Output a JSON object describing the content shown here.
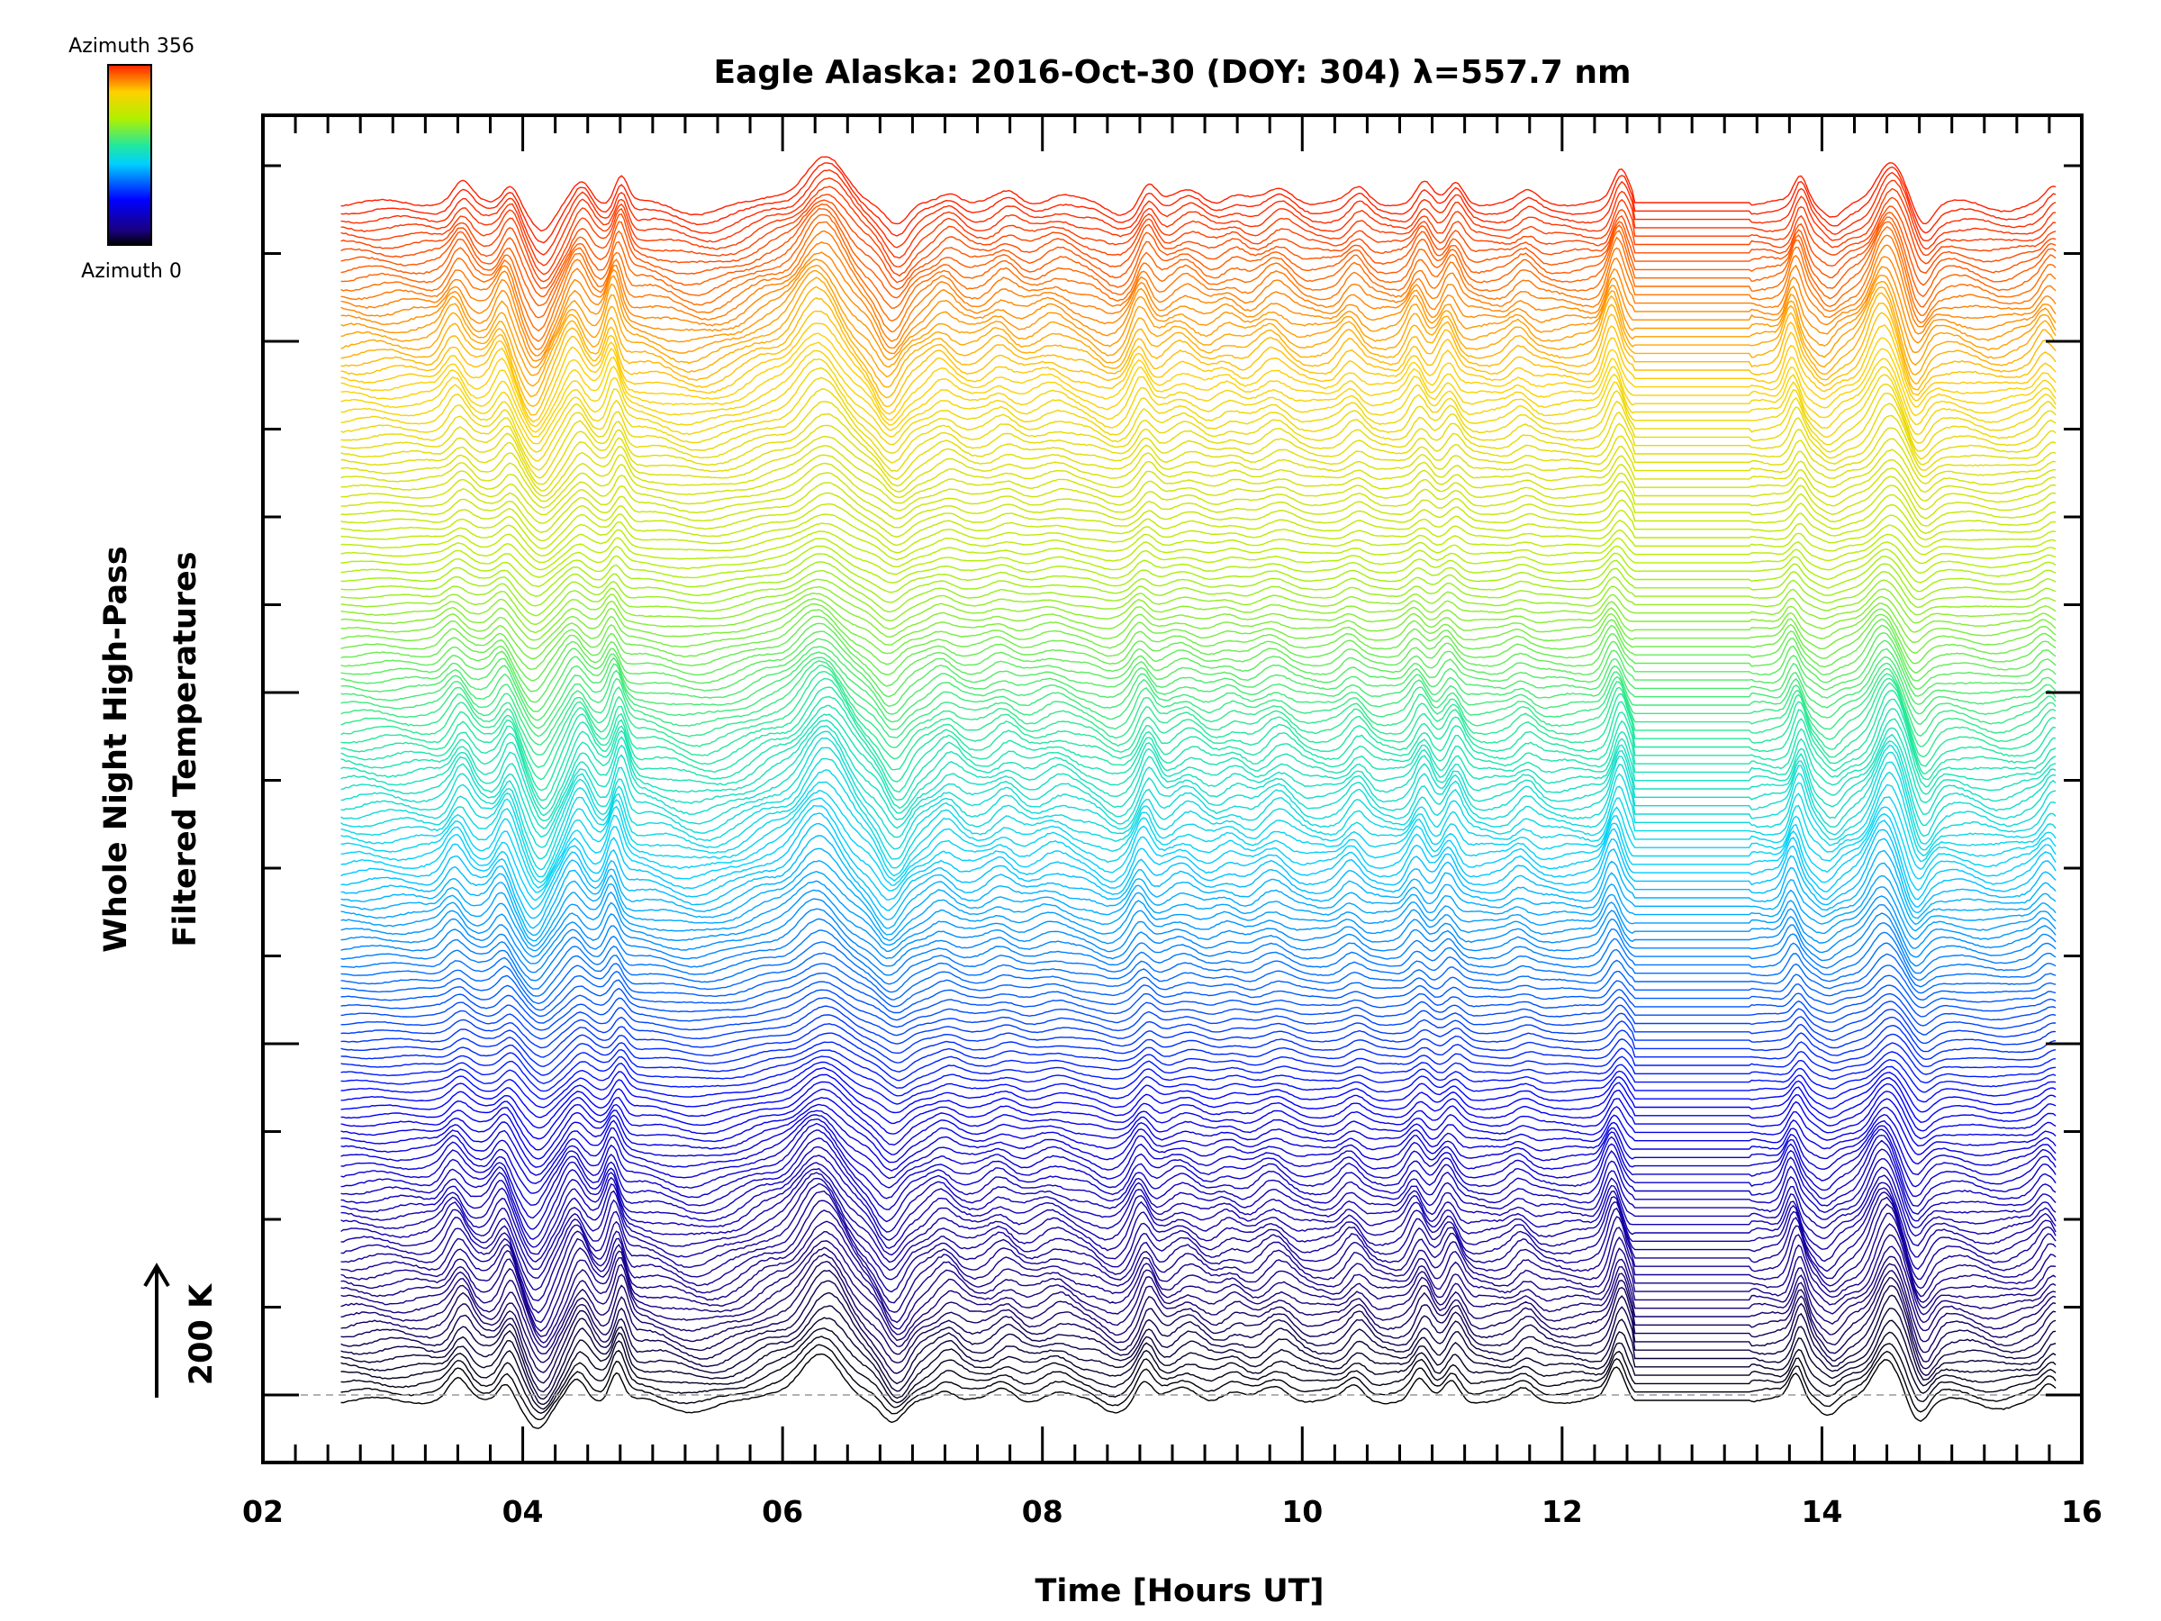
{
  "chart_data": {
    "type": "line",
    "title": "Eagle Alaska: 2016-Oct-30 (DOY: 304) λ=557.7 nm",
    "xlabel": "Time [Hours UT]",
    "ylabel_lines": [
      "Whole Night High-Pass",
      "Filtered Temperatures"
    ],
    "xlim": [
      2,
      16
    ],
    "x_ticks": [
      "02",
      "04",
      "06",
      "08",
      "10",
      "12",
      "14",
      "16"
    ],
    "x_range_data": [
      2.6,
      15.8
    ],
    "scale_bar_label": "200 K",
    "colorbar": {
      "top_label": "Azimuth 356",
      "bottom_label": "Azimuth 0",
      "min": 0,
      "max": 356
    },
    "series_count": 144,
    "azimuth_step_deg": 2.5,
    "gap_interval": [
      12.5,
      13.5
    ],
    "features": [
      {
        "t": 3.5,
        "amp": 1.0,
        "w": 0.07
      },
      {
        "t": 3.87,
        "amp": 1.0,
        "w": 0.06
      },
      {
        "t": 4.12,
        "amp": -1.5,
        "w": 0.09
      },
      {
        "t": 4.42,
        "amp": 1.1,
        "w": 0.07
      },
      {
        "t": 4.72,
        "amp": 1.4,
        "w": 0.05
      },
      {
        "t": 5.35,
        "amp": -0.5,
        "w": 0.2
      },
      {
        "t": 5.9,
        "amp": 0.4,
        "w": 0.12
      },
      {
        "t": 6.3,
        "amp": 2.2,
        "w": 0.16
      },
      {
        "t": 6.85,
        "amp": -1.2,
        "w": 0.09
      },
      {
        "t": 7.25,
        "amp": 0.6,
        "w": 0.08
      },
      {
        "t": 7.7,
        "amp": 0.5,
        "w": 0.08
      },
      {
        "t": 8.1,
        "amp": 0.4,
        "w": 0.1
      },
      {
        "t": 8.55,
        "amp": -0.5,
        "w": 0.1
      },
      {
        "t": 8.78,
        "amp": 1.0,
        "w": 0.06
      },
      {
        "t": 9.1,
        "amp": 0.6,
        "w": 0.1
      },
      {
        "t": 9.45,
        "amp": 0.4,
        "w": 0.08
      },
      {
        "t": 9.8,
        "amp": 0.7,
        "w": 0.1
      },
      {
        "t": 10.4,
        "amp": 0.7,
        "w": 0.07
      },
      {
        "t": 10.9,
        "amp": 1.0,
        "w": 0.06
      },
      {
        "t": 11.15,
        "amp": 1.0,
        "w": 0.06
      },
      {
        "t": 11.7,
        "amp": 0.5,
        "w": 0.07
      },
      {
        "t": 12.42,
        "amp": 1.6,
        "w": 0.06
      },
      {
        "t": 13.8,
        "amp": 1.3,
        "w": 0.05
      },
      {
        "t": 14.05,
        "amp": -0.6,
        "w": 0.07
      },
      {
        "t": 14.5,
        "amp": 2.0,
        "w": 0.1
      },
      {
        "t": 14.75,
        "amp": -1.0,
        "w": 0.07
      },
      {
        "t": 15.35,
        "amp": -0.3,
        "w": 0.15
      },
      {
        "t": 15.75,
        "amp": 0.7,
        "w": 0.06
      }
    ]
  }
}
